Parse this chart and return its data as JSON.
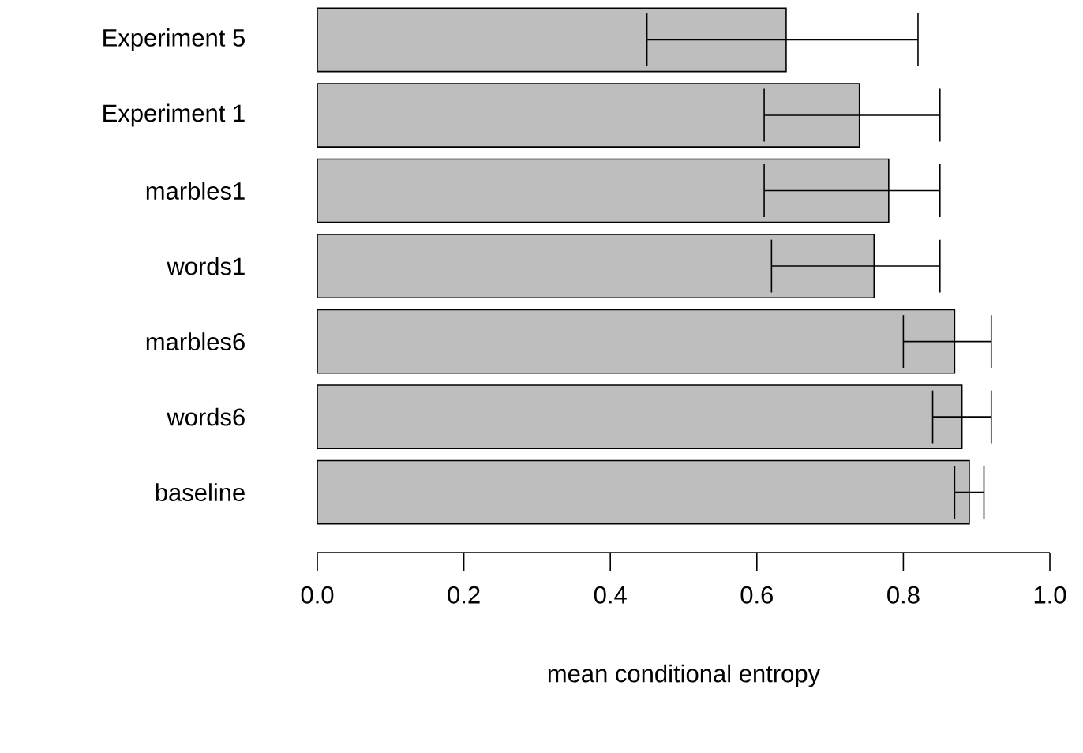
{
  "chart_data": {
    "type": "bar",
    "orientation": "horizontal",
    "categories": [
      "Experiment 5",
      "Experiment 1",
      "marbles1",
      "words1",
      "marbles6",
      "words6",
      "baseline"
    ],
    "values": [
      0.64,
      0.74,
      0.78,
      0.76,
      0.87,
      0.88,
      0.89
    ],
    "errors": [
      [
        0.45,
        0.82
      ],
      [
        0.61,
        0.85
      ],
      [
        0.61,
        0.85
      ],
      [
        0.62,
        0.85
      ],
      [
        0.8,
        0.92
      ],
      [
        0.84,
        0.92
      ],
      [
        0.87,
        0.91
      ]
    ],
    "color": "#bebebe",
    "xlim": [
      0,
      1
    ],
    "xticks": [
      {
        "value": 0,
        "label": "0.0"
      },
      0.2,
      0.4,
      0.6,
      0.8,
      {
        "value": 1,
        "label": "1.0"
      }
    ],
    "xlabel": "mean conditional entropy"
  }
}
